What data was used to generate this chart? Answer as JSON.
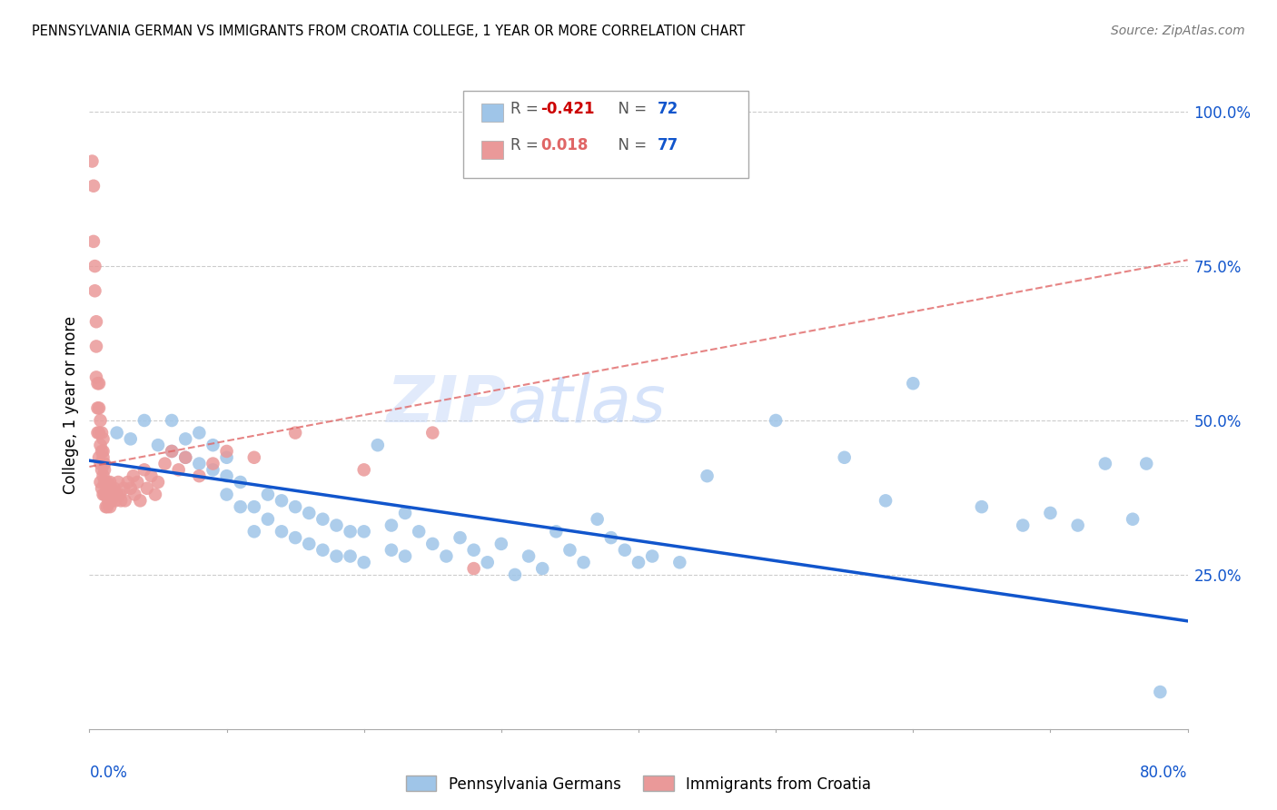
{
  "title": "PENNSYLVANIA GERMAN VS IMMIGRANTS FROM CROATIA COLLEGE, 1 YEAR OR MORE CORRELATION CHART",
  "source": "Source: ZipAtlas.com",
  "ylabel": "College, 1 year or more",
  "xmin": 0.0,
  "xmax": 0.8,
  "ymin": 0.0,
  "ymax": 1.05,
  "legend_blue_r": "-0.421",
  "legend_blue_n": "72",
  "legend_pink_r": "0.018",
  "legend_pink_n": "77",
  "legend_label_blue": "Pennsylvania Germans",
  "legend_label_pink": "Immigrants from Croatia",
  "blue_color": "#9fc5e8",
  "pink_color": "#ea9999",
  "blue_line_color": "#1155cc",
  "pink_line_color": "#e06666",
  "pink_trendline_color": "#e06666",
  "watermark_color": "#cfe2f3",
  "grid_color": "#cccccc",
  "right_axis_color": "#1155cc",
  "blue_trendline_start_y": 0.435,
  "blue_trendline_end_y": 0.175,
  "pink_trendline_start_y": 0.425,
  "pink_trendline_end_y": 0.76,
  "blue_x": [
    0.02,
    0.03,
    0.04,
    0.05,
    0.06,
    0.06,
    0.07,
    0.07,
    0.08,
    0.08,
    0.09,
    0.09,
    0.1,
    0.1,
    0.1,
    0.11,
    0.11,
    0.12,
    0.12,
    0.13,
    0.13,
    0.14,
    0.14,
    0.15,
    0.15,
    0.16,
    0.16,
    0.17,
    0.17,
    0.18,
    0.18,
    0.19,
    0.19,
    0.2,
    0.2,
    0.21,
    0.22,
    0.22,
    0.23,
    0.23,
    0.24,
    0.25,
    0.26,
    0.27,
    0.28,
    0.29,
    0.3,
    0.31,
    0.32,
    0.33,
    0.34,
    0.35,
    0.36,
    0.37,
    0.38,
    0.39,
    0.4,
    0.41,
    0.43,
    0.45,
    0.5,
    0.55,
    0.58,
    0.6,
    0.65,
    0.68,
    0.7,
    0.72,
    0.74,
    0.76,
    0.77,
    0.78
  ],
  "blue_y": [
    0.48,
    0.47,
    0.5,
    0.46,
    0.45,
    0.5,
    0.44,
    0.47,
    0.43,
    0.48,
    0.42,
    0.46,
    0.38,
    0.41,
    0.44,
    0.36,
    0.4,
    0.32,
    0.36,
    0.34,
    0.38,
    0.32,
    0.37,
    0.31,
    0.36,
    0.3,
    0.35,
    0.29,
    0.34,
    0.28,
    0.33,
    0.32,
    0.28,
    0.32,
    0.27,
    0.46,
    0.29,
    0.33,
    0.35,
    0.28,
    0.32,
    0.3,
    0.28,
    0.31,
    0.29,
    0.27,
    0.3,
    0.25,
    0.28,
    0.26,
    0.32,
    0.29,
    0.27,
    0.34,
    0.31,
    0.29,
    0.27,
    0.28,
    0.27,
    0.41,
    0.5,
    0.44,
    0.37,
    0.56,
    0.36,
    0.33,
    0.35,
    0.33,
    0.43,
    0.34,
    0.43,
    0.06
  ],
  "pink_x": [
    0.002,
    0.003,
    0.003,
    0.004,
    0.004,
    0.005,
    0.005,
    0.005,
    0.006,
    0.006,
    0.006,
    0.007,
    0.007,
    0.007,
    0.007,
    0.008,
    0.008,
    0.008,
    0.008,
    0.009,
    0.009,
    0.009,
    0.009,
    0.01,
    0.01,
    0.01,
    0.01,
    0.01,
    0.011,
    0.011,
    0.011,
    0.011,
    0.012,
    0.012,
    0.012,
    0.013,
    0.013,
    0.013,
    0.014,
    0.014,
    0.015,
    0.015,
    0.015,
    0.016,
    0.016,
    0.017,
    0.018,
    0.019,
    0.02,
    0.021,
    0.022,
    0.023,
    0.025,
    0.026,
    0.028,
    0.03,
    0.032,
    0.033,
    0.035,
    0.037,
    0.04,
    0.042,
    0.045,
    0.048,
    0.05,
    0.055,
    0.06,
    0.065,
    0.07,
    0.08,
    0.09,
    0.1,
    0.12,
    0.15,
    0.2,
    0.25,
    0.28
  ],
  "pink_y": [
    0.92,
    0.88,
    0.79,
    0.75,
    0.71,
    0.66,
    0.62,
    0.57,
    0.56,
    0.52,
    0.48,
    0.56,
    0.52,
    0.48,
    0.44,
    0.5,
    0.46,
    0.43,
    0.4,
    0.48,
    0.45,
    0.42,
    0.39,
    0.47,
    0.44,
    0.41,
    0.38,
    0.45,
    0.43,
    0.4,
    0.38,
    0.42,
    0.4,
    0.38,
    0.36,
    0.4,
    0.38,
    0.36,
    0.39,
    0.37,
    0.4,
    0.38,
    0.36,
    0.39,
    0.37,
    0.38,
    0.39,
    0.37,
    0.38,
    0.4,
    0.38,
    0.37,
    0.39,
    0.37,
    0.4,
    0.39,
    0.41,
    0.38,
    0.4,
    0.37,
    0.42,
    0.39,
    0.41,
    0.38,
    0.4,
    0.43,
    0.45,
    0.42,
    0.44,
    0.41,
    0.43,
    0.45,
    0.44,
    0.48,
    0.42,
    0.48,
    0.26
  ]
}
